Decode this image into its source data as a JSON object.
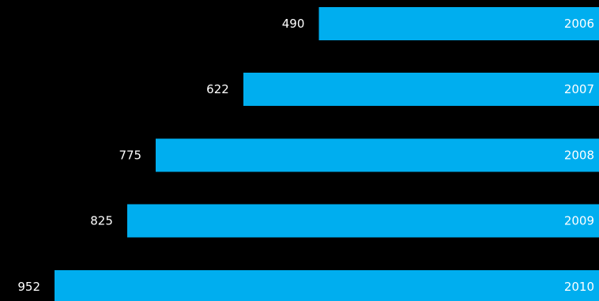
{
  "chart_data": {
    "type": "bar",
    "orientation": "horizontal",
    "categories": [
      "2006",
      "2007",
      "2008",
      "2009",
      "2010"
    ],
    "values": [
      490,
      622,
      775,
      825,
      952
    ],
    "title": "",
    "xlabel": "",
    "ylabel": "",
    "bar_direction": "right-to-left",
    "grid": false,
    "legend": "none",
    "colors": {
      "background": "#000000",
      "bar": "#00AEEF",
      "text": "#FFFFFF"
    }
  }
}
